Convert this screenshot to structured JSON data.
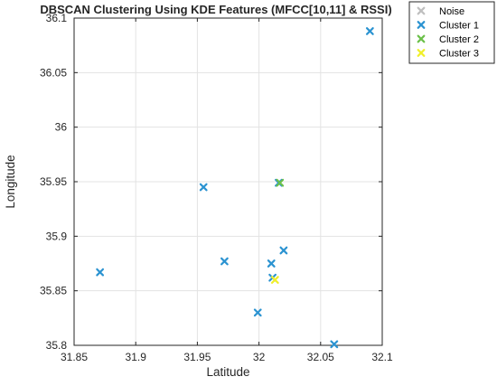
{
  "chart_data": {
    "type": "scatter",
    "title": "DBSCAN Clustering Using KDE Features (MFCC[10,11] & RSSI)",
    "xlabel": "Latitude",
    "ylabel": "Longitude",
    "xlim": [
      31.85,
      32.1
    ],
    "ylim": [
      35.8,
      36.1
    ],
    "x_ticks": [
      "31.85",
      "31.9",
      "31.95",
      "32",
      "32.05",
      "32.1"
    ],
    "y_ticks": [
      "35.8",
      "35.85",
      "35.9",
      "35.95",
      "36",
      "36.05",
      "36.1"
    ],
    "grid": true,
    "legend": "outside top-right",
    "series": [
      {
        "name": "Noise",
        "color": "#bfbfbf",
        "points": []
      },
      {
        "name": "Cluster 1",
        "color": "#2b93d1",
        "points": [
          [
            31.871,
            35.867
          ],
          [
            31.955,
            35.945
          ],
          [
            31.972,
            35.877
          ],
          [
            31.999,
            35.83
          ],
          [
            32.01,
            35.875
          ],
          [
            32.011,
            35.862
          ],
          [
            32.02,
            35.887
          ],
          [
            32.061,
            35.801
          ],
          [
            32.09,
            36.088
          ],
          [
            32.016,
            35.949
          ]
        ]
      },
      {
        "name": "Cluster 2",
        "color": "#6cc04a",
        "points": [
          [
            32.017,
            35.949
          ]
        ]
      },
      {
        "name": "Cluster 3",
        "color": "#f0ef2a",
        "points": [
          [
            32.013,
            35.86
          ]
        ]
      }
    ]
  }
}
